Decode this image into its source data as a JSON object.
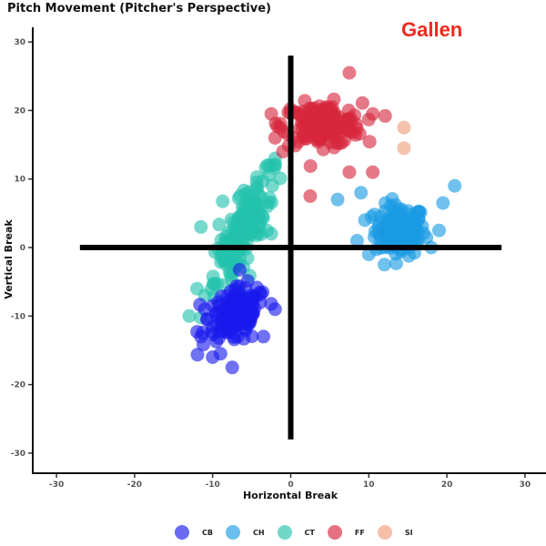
{
  "title": "Pitch Movement (Pitcher's Perspective)",
  "pitcher": "Gallen",
  "pitcher_color": "#f0291d",
  "chart_data": {
    "type": "scatter",
    "title": "Pitch Movement (Pitcher's Perspective)",
    "annotation": "Gallen",
    "xlabel": "Horizontal Break",
    "ylabel": "Vertical Break",
    "xlim": [
      -33,
      33
    ],
    "ylim": [
      -33,
      33
    ],
    "xticks": [
      -30,
      -20,
      -10,
      0,
      10,
      20,
      30
    ],
    "yticks": [
      -30,
      -20,
      -10,
      0,
      10,
      20,
      30
    ],
    "grid": false,
    "legend_position": "bottom",
    "reference_lines": [
      {
        "orientation": "horizontal",
        "y": 0,
        "x_from": -27,
        "x_to": 27
      },
      {
        "orientation": "vertical",
        "x": 0,
        "y_from": -28,
        "y_to": 28
      }
    ],
    "series": [
      {
        "name": "CB",
        "color": "#1a1aee",
        "center": [
          -7,
          -10
        ],
        "spread": [
          2.2,
          2.6
        ],
        "tilt": 0.3,
        "count": 150,
        "outliers": [
          [
            -11,
            -9
          ],
          [
            -11.5,
            -13
          ],
          [
            -10,
            -16
          ],
          [
            -9,
            -15.5
          ],
          [
            -7.5,
            -17.5
          ],
          [
            -3.5,
            -13
          ],
          [
            -2,
            -9
          ],
          [
            -10,
            -8.5
          ]
        ]
      },
      {
        "name": "CH",
        "color": "#1a9be3",
        "center": [
          14,
          2.5
        ],
        "spread": [
          2.0,
          2.3
        ],
        "tilt": 0,
        "count": 150,
        "outliers": [
          [
            6,
            7
          ],
          [
            9,
            8
          ],
          [
            21,
            9
          ],
          [
            19.5,
            6.5
          ],
          [
            19,
            2.5
          ],
          [
            18,
            0
          ],
          [
            10,
            -1
          ],
          [
            12,
            -2.5
          ],
          [
            8.5,
            1
          ],
          [
            9.5,
            4
          ]
        ]
      },
      {
        "name": "CT",
        "color": "#24c2ac",
        "center": [
          -6,
          3
        ],
        "spread": [
          1.5,
          4.8
        ],
        "tilt": 0.55,
        "count": 170,
        "outliers": [
          [
            -11.5,
            3
          ],
          [
            -12,
            -6
          ],
          [
            -11,
            -7
          ],
          [
            -13,
            -10
          ],
          [
            -3,
            12
          ],
          [
            -2,
            13
          ],
          [
            -3,
            6
          ],
          [
            -2.5,
            2
          ]
        ]
      },
      {
        "name": "FF",
        "color": "#d7263d",
        "center": [
          4,
          18
        ],
        "spread": [
          3.2,
          1.9
        ],
        "tilt": 0,
        "count": 170,
        "outliers": [
          [
            7.5,
            25.5
          ],
          [
            -2.5,
            19.5
          ],
          [
            10.5,
            19.5
          ],
          [
            2.5,
            7.5
          ],
          [
            7.5,
            11
          ],
          [
            10.5,
            11
          ],
          [
            -1,
            14
          ],
          [
            -2,
            16
          ]
        ]
      },
      {
        "name": "SI",
        "color": "#ef9d79",
        "center": null,
        "count": 0,
        "outliers": [
          [
            14.5,
            17.5
          ],
          [
            14.5,
            14.5
          ]
        ]
      }
    ]
  },
  "legend": {
    "items": [
      {
        "label": "CB",
        "color": "#1a1aee"
      },
      {
        "label": "CH",
        "color": "#1a9be3"
      },
      {
        "label": "CT",
        "color": "#24c2ac"
      },
      {
        "label": "FF",
        "color": "#d7263d"
      },
      {
        "label": "SI",
        "color": "#ef9d79"
      }
    ]
  }
}
